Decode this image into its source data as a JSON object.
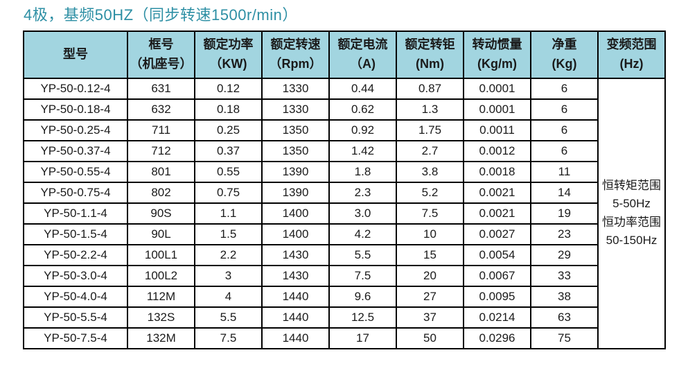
{
  "colors": {
    "title_teal": "#2d8fa4",
    "header_bg": "#a2d5e0",
    "border": "#000000",
    "page_bg": "#ffffff"
  },
  "title": {
    "text": "4极，基频50HZ（同步转速1500r/min）"
  },
  "table": {
    "columns": [
      {
        "line1": "型号",
        "line2": ""
      },
      {
        "line1": "框号",
        "line2": "（机座号）"
      },
      {
        "line1": "额定功率",
        "line2": "（KW)"
      },
      {
        "line1": "额定转速",
        "line2": "（Rpm）"
      },
      {
        "line1": "额定电流",
        "line2": "（A)"
      },
      {
        "line1": "额定转钜",
        "line2": "(Nm)"
      },
      {
        "line1": "转动惯量",
        "line2": "(Kg/m)"
      },
      {
        "line1": "净重",
        "line2": "(Kg)"
      },
      {
        "line1": "变频范围",
        "line2": "(Hz)"
      }
    ],
    "rows": [
      [
        "YP-50-0.12-4",
        "631",
        "0.12",
        "1330",
        "0.44",
        "0.87",
        "0.0001",
        "6"
      ],
      [
        "YP-50-0.18-4",
        "632",
        "0.18",
        "1330",
        "0.62",
        "1.3",
        "0.0001",
        "6"
      ],
      [
        "YP-50-0.25-4",
        "711",
        "0.25",
        "1350",
        "0.92",
        "1.75",
        "0.0011",
        "6"
      ],
      [
        "YP-50-0.37-4",
        "712",
        "0.37",
        "1350",
        "1.42",
        "2.7",
        "0.0012",
        "6"
      ],
      [
        "YP-50-0.55-4",
        "801",
        "0.55",
        "1390",
        "1.8",
        "3.8",
        "0.0018",
        "11"
      ],
      [
        "YP-50-0.75-4",
        "802",
        "0.75",
        "1390",
        "2.3",
        "5.2",
        "0.0021",
        "14"
      ],
      [
        "YP-50-1.1-4",
        "90S",
        "1.1",
        "1400",
        "3.0",
        "7.5",
        "0.0021",
        "19"
      ],
      [
        "YP-50-1.5-4",
        "90L",
        "1.5",
        "1400",
        "4.2",
        "10",
        "0.0027",
        "23"
      ],
      [
        "YP-50-2.2-4",
        "100L1",
        "2.2",
        "1430",
        "5.5",
        "15",
        "0.0054",
        "29"
      ],
      [
        "YP-50-3.0-4",
        "100L2",
        "3",
        "1430",
        "7.5",
        "20",
        "0.0067",
        "33"
      ],
      [
        "YP-50-4.0-4",
        "112M",
        "4",
        "1440",
        "9.6",
        "27",
        "0.0095",
        "38"
      ],
      [
        "YP-50-5.5-4",
        "132S",
        "5.5",
        "1440",
        "12.5",
        "37",
        "0.0214",
        "63"
      ],
      [
        "YP-50-7.5-4",
        "132M",
        "7.5",
        "1440",
        "17",
        "50",
        "0.0296",
        "75"
      ]
    ],
    "frequency_range": [
      "恒转矩范围",
      "5-50Hz",
      "恒功率范围",
      "50-150Hz"
    ]
  }
}
